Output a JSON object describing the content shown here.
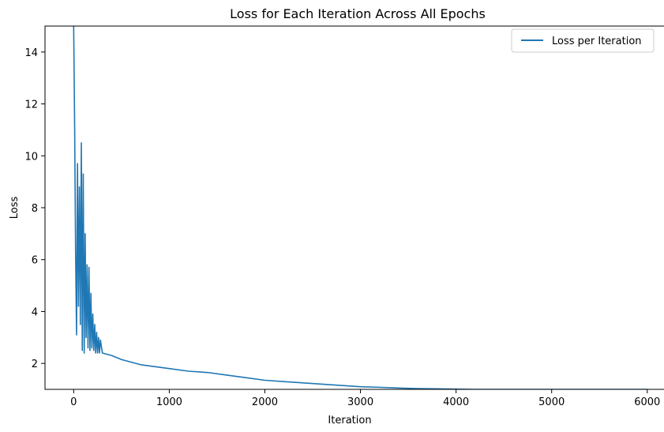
{
  "chart_data": {
    "type": "line",
    "title": "Loss for Each Iteration Across All Epochs",
    "xlabel": "Iteration",
    "ylabel": "Loss",
    "xlim": [
      -300,
      6200
    ],
    "ylim": [
      1.0,
      15.0
    ],
    "x_ticks": [
      0,
      1000,
      2000,
      3000,
      4000,
      5000,
      6000
    ],
    "y_ticks": [
      2,
      4,
      6,
      8,
      10,
      12,
      14
    ],
    "grid": false,
    "legend_position": "top-right",
    "series": [
      {
        "name": "Loss per Iteration",
        "color": "#1f77b4",
        "x": [
          0,
          10,
          20,
          30,
          40,
          50,
          60,
          70,
          80,
          90,
          100,
          110,
          120,
          130,
          140,
          150,
          160,
          170,
          180,
          190,
          200,
          210,
          220,
          230,
          240,
          250,
          260,
          270,
          280,
          300,
          350,
          400,
          500,
          600,
          700,
          800,
          900,
          1000,
          1200,
          1400,
          1600,
          1800,
          2000,
          2200,
          2400,
          2600,
          2800,
          3000,
          3200,
          3400,
          3600,
          3800,
          4000,
          4200,
          4400,
          4600,
          4800,
          5000,
          5200,
          5400,
          5600,
          5800,
          6000
        ],
        "y": [
          15.0,
          11.2,
          6.3,
          3.1,
          9.7,
          4.2,
          8.8,
          3.5,
          10.5,
          2.5,
          9.3,
          2.4,
          7.0,
          3.0,
          5.8,
          2.6,
          5.7,
          2.5,
          4.7,
          2.6,
          3.9,
          2.5,
          3.5,
          2.4,
          3.2,
          2.4,
          3.0,
          2.4,
          2.9,
          2.4,
          2.35,
          2.3,
          2.15,
          2.05,
          1.95,
          1.9,
          1.85,
          1.8,
          1.7,
          1.65,
          1.55,
          1.45,
          1.35,
          1.3,
          1.25,
          1.2,
          1.15,
          1.1,
          1.08,
          1.05,
          1.03,
          1.02,
          1.01,
          1.0,
          1.0,
          1.0,
          1.0,
          1.0,
          1.0,
          1.0,
          1.0,
          1.0,
          1.0
        ]
      }
    ]
  }
}
